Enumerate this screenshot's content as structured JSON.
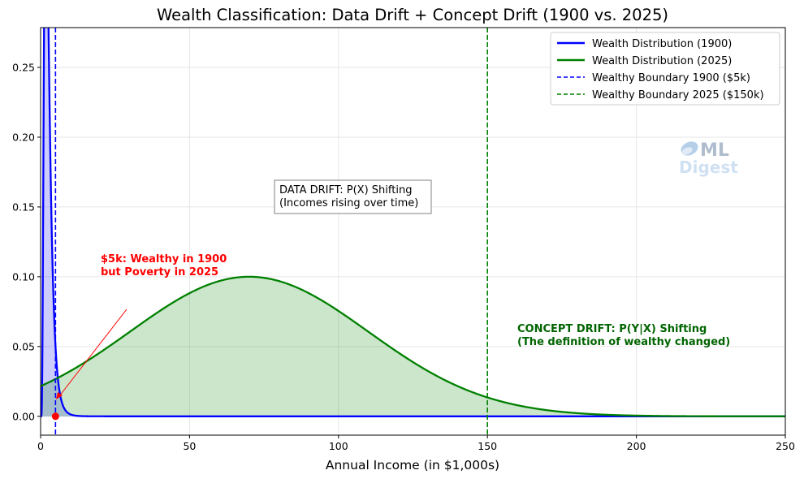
{
  "chart_data": {
    "type": "line",
    "title": "Wealth Classification: Data Drift + Concept Drift (1900 vs. 2025)",
    "xlabel": "Annual Income (in $1,000s)",
    "ylabel": "",
    "xlim": [
      0,
      250
    ],
    "ylim": [
      -0.0135,
      0.2785
    ],
    "xticks": [
      0,
      50,
      100,
      150,
      200,
      250
    ],
    "xtick_labels": [
      "0",
      "50",
      "100",
      "150",
      "200",
      "250"
    ],
    "yticks": [
      0.0,
      0.05,
      0.1,
      0.15,
      0.2,
      0.25
    ],
    "ytick_labels": [
      "0.00",
      "0.05",
      "0.10",
      "0.15",
      "0.20",
      "0.25"
    ],
    "grid": true,
    "legend_position": "top-right",
    "series": [
      {
        "name": "Wealth Distribution (1900)",
        "color": "#0000ff",
        "fill": "#0000ff",
        "style": "solid",
        "distribution": {
          "kind": "lognormal",
          "median": 2.3,
          "sigma": 0.52,
          "x_start": 0.2
        }
      },
      {
        "name": "Wealth Distribution (2025)",
        "color": "#008000",
        "fill": "#008000",
        "style": "solid",
        "distribution": {
          "kind": "gaussian",
          "mean": 70,
          "sd": 40,
          "peak": 0.1
        }
      }
    ],
    "vlines": [
      {
        "name": "Wealthy Boundary 1900 ($5k)",
        "x": 5,
        "color": "#0000ff",
        "style": "dashed"
      },
      {
        "name": "Wealthy Boundary 2025 ($150k)",
        "x": 150,
        "color": "#008000",
        "style": "dashed"
      }
    ],
    "marker": {
      "x": 5,
      "y": 0,
      "color": "#ff0000"
    },
    "annotations": {
      "data_drift": {
        "lines": [
          "DATA DRIFT: P(X) Shifting",
          "(Incomes rising over time)"
        ],
        "x": 80,
        "y": 0.15
      },
      "concept_drift": {
        "lines": [
          "CONCEPT DRIFT: P(Y|X) Shifting",
          "(The definition of wealthy changed)"
        ],
        "x": 160,
        "y": 0.05,
        "color": "#006400"
      },
      "five_k": {
        "lines": [
          "$5k: Wealthy in 1900",
          "but Poverty in 2025"
        ],
        "x": 20,
        "y": 0.1,
        "arrow_to": [
          5,
          0.01
        ],
        "color": "#ff0000"
      }
    }
  },
  "watermark": {
    "line1": "ML",
    "line2": "Digest"
  }
}
